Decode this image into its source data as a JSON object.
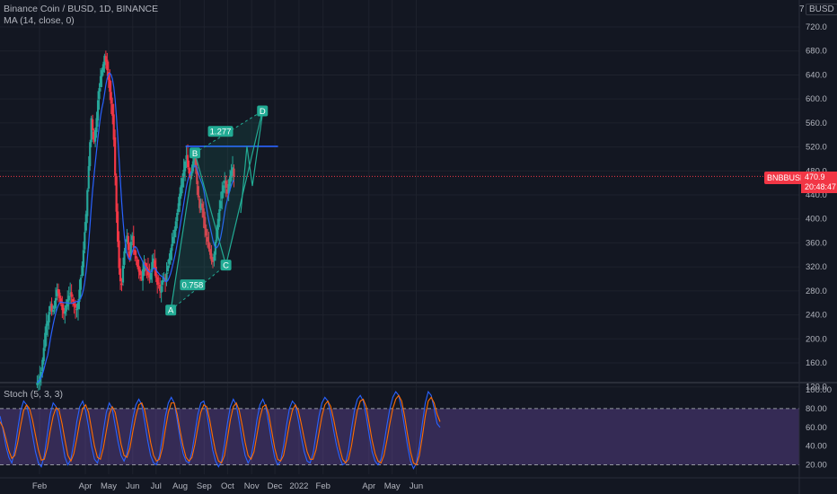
{
  "header": {
    "symbol": "Binance Coin / BUSD, 1D, BINANCE",
    "indicator": "MA (14, close, 0)",
    "currency": "BUSD",
    "currency_prefix": "7"
  },
  "price_tag": {
    "symbol": "BNBBUSD",
    "price": "470.9",
    "countdown": "20:48:47"
  },
  "colors": {
    "background": "#131722",
    "grid": "#1e222d",
    "up": "#26a69a",
    "down": "#f23645",
    "ma": "#2962ff",
    "harmonic": "#22ab94",
    "resistance": "#2962ff",
    "stoch_k": "#2962ff",
    "stoch_d": "#ff6d00",
    "stoch_band": "#7e57c2"
  },
  "chart_data": [
    {
      "type": "candlestick",
      "title": "Binance Coin / BUSD, 1D, BINANCE",
      "xaxis_ticks": [
        "Feb",
        "Apr",
        "May",
        "Jun",
        "Jul",
        "Aug",
        "Sep",
        "Oct",
        "Nov",
        "Dec",
        "2022",
        "Feb",
        "Apr",
        "May",
        "Jun"
      ],
      "yaxis_ticks": [
        "720.0",
        "680.0",
        "640.0",
        "600.0",
        "560.0",
        "520.0",
        "480.0",
        "440.0",
        "400.0",
        "360.0",
        "320.0",
        "280.0",
        "240.0",
        "200.0",
        "160.0",
        "120.0"
      ],
      "ylim": [
        120,
        735
      ],
      "closes": [
        127,
        131,
        138,
        145,
        165,
        185,
        210,
        225,
        230,
        245,
        255,
        245,
        248,
        255,
        268,
        282,
        276,
        268,
        258,
        248,
        242,
        246,
        256,
        266,
        272,
        276,
        270,
        262,
        256,
        252,
        250,
        262,
        282,
        302,
        322,
        348,
        378,
        408,
        448,
        488,
        528,
        568,
        548,
        528,
        548,
        568,
        598,
        618,
        638,
        648,
        658,
        672,
        662,
        648,
        632,
        612,
        592,
        572,
        532,
        472,
        412,
        362,
        318,
        296,
        290,
        322,
        346,
        358,
        372,
        348,
        336,
        362,
        372,
        352,
        340,
        334,
        320,
        312,
        306,
        300,
        316,
        328,
        320,
        314,
        306,
        302,
        310,
        328,
        334,
        318,
        302,
        290,
        292,
        280,
        288,
        298,
        302,
        296,
        310,
        322,
        334,
        348,
        358,
        370,
        382,
        396,
        410,
        426,
        442,
        456,
        468,
        482,
        496,
        506,
        486,
        476,
        468,
        478,
        496,
        506,
        486,
        458,
        436,
        418,
        426,
        418,
        402,
        384,
        372,
        362,
        350,
        340,
        330,
        328,
        342,
        362,
        382,
        400,
        416,
        430,
        446,
        456,
        464,
        452,
        442,
        458,
        472,
        480,
        486,
        470.9
      ],
      "annotations": [
        {
          "label": "A",
          "x": "2021-07-20",
          "y": 248
        },
        {
          "label": "B",
          "x": "2021-08-20",
          "y": 510
        },
        {
          "label": "C",
          "x": "2021-09-29",
          "y": 323
        },
        {
          "label": "D",
          "x": "2021-11-15",
          "y": 580
        },
        {
          "label": "0.758",
          "x": "2021-08-17",
          "y": 290
        },
        {
          "label": "1.277",
          "x": "2021-09-22",
          "y": 546
        }
      ],
      "resistance_level": 521,
      "projection": [
        {
          "x": "2021-10-18",
          "y": 410
        },
        {
          "x": "2021-10-26",
          "y": 521
        },
        {
          "x": "2021-11-02",
          "y": 455
        },
        {
          "x": "2021-11-15",
          "y": 575
        }
      ],
      "indicators": [
        {
          "name": "MA (14, close, 0)",
          "type": "line"
        }
      ]
    },
    {
      "type": "line",
      "title": "Stoch (5, 3, 3)",
      "yaxis_ticks": [
        "100.00",
        "80.00",
        "60.00",
        "40.00",
        "20.00"
      ],
      "ylim": [
        10,
        102
      ],
      "bands": [
        20,
        80
      ],
      "series": [
        {
          "values": [
            72,
            58,
            40,
            28,
            22,
            36,
            58,
            78,
            88,
            84,
            70,
            52,
            34,
            22,
            18,
            30,
            52,
            74,
            86,
            82,
            66,
            46,
            28,
            20,
            26,
            44,
            66,
            82,
            88,
            78,
            60,
            40,
            26,
            22,
            34,
            56,
            76,
            86,
            80,
            62,
            44,
            30,
            24,
            32,
            50,
            70,
            84,
            90,
            84,
            66,
            46,
            30,
            22,
            20,
            30,
            50,
            72,
            86,
            92,
            86,
            68,
            48,
            32,
            24,
            22,
            34,
            54,
            74,
            86,
            88,
            76,
            56,
            36,
            24,
            18,
            24,
            42,
            64,
            82,
            90,
            84,
            66,
            46,
            30,
            22,
            28,
            46,
            68,
            84,
            90,
            82,
            64,
            44,
            28,
            20,
            24,
            40,
            62,
            80,
            88,
            84,
            68,
            50,
            34,
            24,
            22,
            32,
            52,
            72,
            86,
            92,
            88,
            74,
            56,
            40,
            28,
            20,
            22,
            36,
            58,
            78,
            90,
            94,
            88,
            72,
            52,
            34,
            24,
            20,
            26,
            42,
            62,
            80,
            92,
            98,
            94,
            80,
            60,
            40,
            24,
            16,
            22,
            40,
            64,
            86,
            98,
            94,
            80,
            64,
            60
          ]
        },
        {
          "values": [
            66,
            60,
            48,
            35,
            27,
            30,
            44,
            62,
            78,
            84,
            80,
            68,
            52,
            36,
            25,
            26,
            38,
            56,
            72,
            81,
            78,
            64,
            46,
            30,
            24,
            32,
            48,
            66,
            80,
            84,
            76,
            58,
            40,
            28,
            26,
            38,
            56,
            74,
            82,
            76,
            60,
            42,
            30,
            28,
            38,
            56,
            72,
            84,
            86,
            78,
            62,
            44,
            30,
            24,
            26,
            38,
            58,
            76,
            86,
            86,
            74,
            56,
            40,
            28,
            24,
            28,
            42,
            60,
            76,
            84,
            82,
            68,
            50,
            34,
            24,
            22,
            30,
            48,
            68,
            82,
            86,
            78,
            62,
            44,
            30,
            26,
            34,
            52,
            70,
            82,
            84,
            74,
            56,
            38,
            26,
            24,
            30,
            46,
            64,
            78,
            84,
            78,
            64,
            48,
            34,
            26,
            26,
            36,
            54,
            72,
            84,
            88,
            82,
            68,
            52,
            38,
            26,
            22,
            26,
            40,
            60,
            78,
            88,
            90,
            82,
            64,
            46,
            32,
            24,
            22,
            30,
            46,
            64,
            80,
            90,
            94,
            88,
            72,
            52,
            34,
            22,
            20,
            30,
            50,
            72,
            88,
            92,
            86,
            74,
            66
          ]
        }
      ]
    }
  ]
}
